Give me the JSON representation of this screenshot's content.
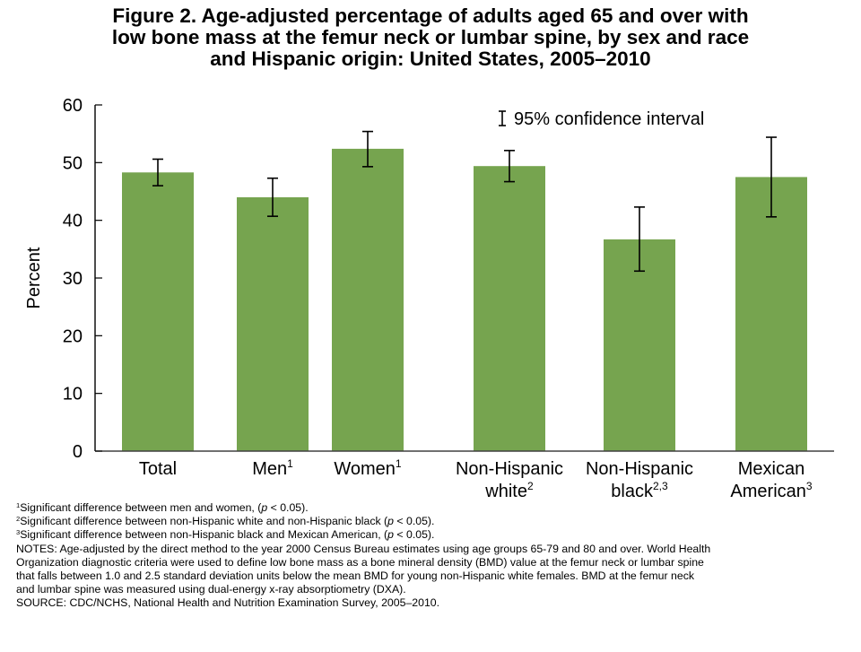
{
  "title_lines": [
    "Figure 2. Age-adjusted percentage of adults aged 65 and over with",
    "low bone mass at the femur neck or lumbar spine, by sex and race",
    "and Hispanic origin: United States, 2005–2010"
  ],
  "chart_data": {
    "type": "bar",
    "title": "Figure 2. Age-adjusted percentage of adults aged 65 and over with low bone mass at the femur neck or lumbar spine, by sex and race and Hispanic origin: United States, 2005–2010",
    "xlabel": "",
    "ylabel": "Percent",
    "ylim": [
      0,
      60
    ],
    "yticks": [
      0,
      10,
      20,
      30,
      40,
      50,
      60
    ],
    "grid": false,
    "legend": {
      "text": "95% confidence interval",
      "symbol": "I",
      "placement": "top-right"
    },
    "bar_color": "#76a44f",
    "categories": [
      {
        "lines": [
          "Total"
        ],
        "sup": ""
      },
      {
        "lines": [
          "Men"
        ],
        "sup": "1"
      },
      {
        "lines": [
          "Women"
        ],
        "sup": "1"
      },
      {
        "lines": [
          "Non-Hispanic",
          "white"
        ],
        "sup": "2"
      },
      {
        "lines": [
          "Non-Hispanic",
          "black"
        ],
        "sup": "2,3"
      },
      {
        "lines": [
          "Mexican",
          "American"
        ],
        "sup": "3"
      }
    ],
    "values": [
      48.3,
      44.0,
      52.4,
      49.4,
      36.7,
      47.5
    ],
    "ci_lower": [
      46.0,
      40.7,
      49.3,
      46.7,
      31.2,
      40.6
    ],
    "ci_upper": [
      50.6,
      47.3,
      55.4,
      52.1,
      42.3,
      54.4
    ]
  },
  "notes": [
    {
      "sup": "1",
      "text": "Significant difference between men and women, (",
      "p": "p",
      "after": " < 0.05)."
    },
    {
      "sup": "2",
      "text": "Significant difference between non-Hispanic white and non-Hispanic black (",
      "p": "p",
      "after": " < 0.05)."
    },
    {
      "sup": "3",
      "text": "Significant difference between non-Hispanic black and Mexican American, (",
      "p": "p",
      "after": " < 0.05)."
    },
    {
      "sup": "",
      "text": "NOTES: Age-adjusted by the direct method to the year 2000 Census Bureau estimates using age groups 65-79 and 80 and over. World Health",
      "p": "",
      "after": ""
    },
    {
      "sup": "",
      "text": "Organization diagnostic criteria were used to define low bone mass as a bone mineral density (BMD) value at the femur neck or lumbar spine",
      "p": "",
      "after": ""
    },
    {
      "sup": "",
      "text": "that falls between 1.0 and 2.5 standard deviation units below the mean BMD for young non-Hispanic white females. BMD at the femur neck",
      "p": "",
      "after": ""
    },
    {
      "sup": "",
      "text": "and lumbar spine was measured using dual-energy x-ray absorptiometry (DXA).",
      "p": "",
      "after": ""
    },
    {
      "sup": "",
      "text": "SOURCE: CDC/NCHS, National Health and Nutrition Examination Survey, 2005–2010.",
      "p": "",
      "after": ""
    }
  ]
}
